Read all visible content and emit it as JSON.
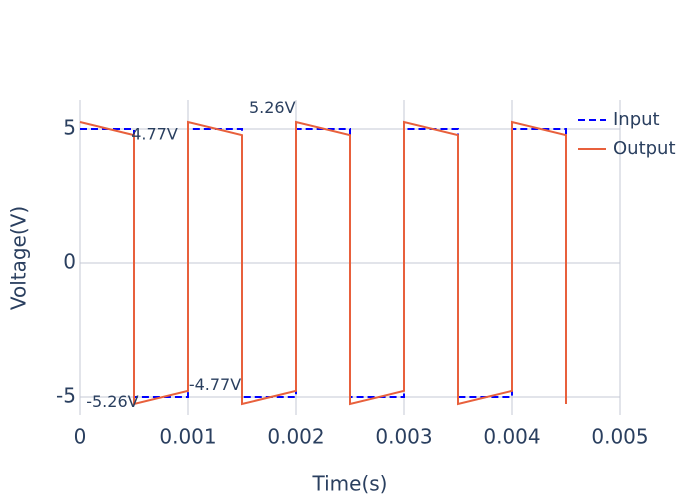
{
  "chart_data": {
    "type": "line",
    "x_label": "Time(s)",
    "y_label": "Voltage(V)",
    "x": [
      0,
      0.0005,
      0.0005,
      0.001,
      0.001,
      0.0015,
      0.0015,
      0.002,
      0.002,
      0.0025,
      0.0025,
      0.003,
      0.003,
      0.0035,
      0.0035,
      0.004,
      0.004,
      0.0045,
      0.0045
    ],
    "series": [
      {
        "name": "Input",
        "color": "#0000ff",
        "dash": true,
        "values": [
          5,
          5,
          -5,
          -5,
          5,
          5,
          -5,
          -5,
          5,
          5,
          -5,
          -5,
          5,
          5,
          -5,
          -5,
          5,
          5,
          -5
        ]
      },
      {
        "name": "Output",
        "color": "#e8603c",
        "dash": false,
        "values": [
          5.26,
          4.77,
          -5.26,
          -4.77,
          5.26,
          4.77,
          -5.26,
          -4.77,
          5.26,
          4.77,
          -5.26,
          -4.77,
          5.26,
          4.77,
          -5.26,
          -4.77,
          5.26,
          4.77,
          -5.26
        ]
      }
    ],
    "annotations": [
      {
        "text": "5.26V",
        "x": 0.00178,
        "y": 5.76
      },
      {
        "text": "4.77V",
        "x": 0.00069,
        "y": 4.77
      },
      {
        "text": "-4.77V",
        "x": 0.00125,
        "y": -4.57
      },
      {
        "text": "-5.26V",
        "x": 0.0003,
        "y": -5.2
      }
    ],
    "xlim": [
      0,
      0.005
    ],
    "xticks": [
      0,
      0.001,
      0.002,
      0.003,
      0.004,
      0.005
    ],
    "ylim": [
      -5.67,
      6.08
    ],
    "yticks": [
      -5,
      0,
      5
    ],
    "grid": true,
    "legend": "top-right"
  }
}
